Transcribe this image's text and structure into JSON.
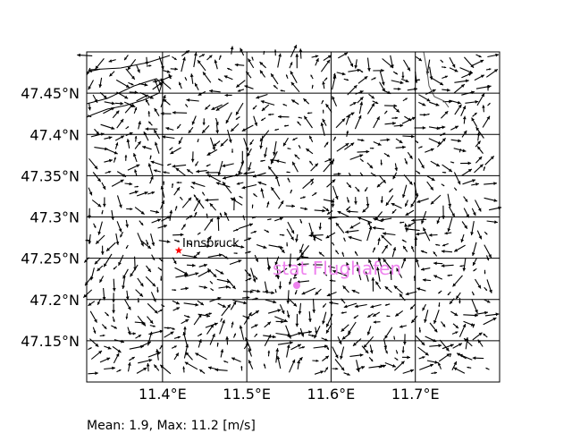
{
  "map": {
    "y_ticks": [
      {
        "value": 47.45,
        "label": "47.45°N"
      },
      {
        "value": 47.4,
        "label": "47.4°N"
      },
      {
        "value": 47.35,
        "label": "47.35°N"
      },
      {
        "value": 47.3,
        "label": "47.3°N"
      },
      {
        "value": 47.25,
        "label": "47.25°N"
      },
      {
        "value": 47.2,
        "label": "47.2°N"
      },
      {
        "value": 47.15,
        "label": "47.15°N"
      }
    ],
    "x_ticks": [
      {
        "value": 11.4,
        "label": "11.4°E"
      },
      {
        "value": 11.5,
        "label": "11.5°E"
      },
      {
        "value": 11.6,
        "label": "11.6°E"
      },
      {
        "value": 11.7,
        "label": "11.7°E"
      }
    ],
    "grid": true,
    "markers": [
      {
        "name": "Innsbruck",
        "label": "Innsbruck",
        "symbol": "star",
        "color": "#ff0000",
        "label_color": "#000000"
      },
      {
        "name": "stat-flughafen",
        "label": "stat Flughafen",
        "symbol": "dot",
        "color": "#ee82ee",
        "label_color": "#ee82ee"
      }
    ],
    "field": "wind vectors",
    "stats_text": "Mean: 1.9, Max: 11.2 [m/s]"
  }
}
